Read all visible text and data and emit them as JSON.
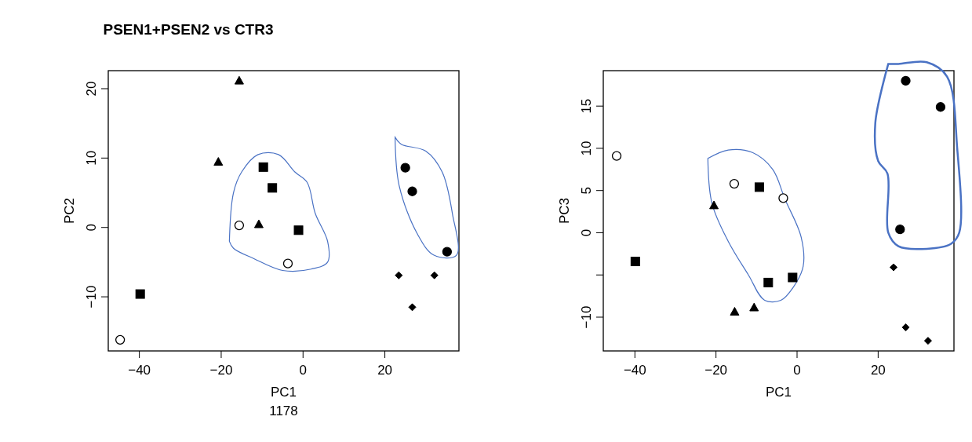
{
  "chart_data": [
    {
      "type": "scatter",
      "title": "PSEN1+PSEN2 vs CTR3",
      "xlabel": "PC1",
      "subtitle": "1178",
      "ylabel": "PC2",
      "xlim": [
        -47.6,
        38.1
      ],
      "ylim": [
        -17.8,
        22.6
      ],
      "xticks": [
        -40,
        -20,
        0,
        20
      ],
      "yticks": [
        -10,
        0,
        10,
        20
      ],
      "series": [
        {
          "marker": "triangle",
          "color": "#000000",
          "x": [
            -15.6,
            -20.7,
            -10.8
          ],
          "values": [
            21.1,
            9.4,
            0.4
          ]
        },
        {
          "marker": "square",
          "color": "#000000",
          "x": [
            -9.7,
            -7.5,
            -1.1,
            -39.8
          ],
          "values": [
            8.7,
            5.7,
            -0.4,
            -9.6
          ]
        },
        {
          "marker": "circle",
          "color": "#ffffff",
          "x": [
            -15.6,
            -3.7,
            -44.7
          ],
          "values": [
            0.3,
            -5.2,
            -16.2
          ]
        },
        {
          "marker": "circle",
          "color": "#000000",
          "x": [
            25.0,
            26.7,
            35.2
          ],
          "values": [
            8.6,
            5.2,
            -3.5
          ]
        },
        {
          "marker": "diamond",
          "color": "#000000",
          "x": [
            23.4,
            32.1,
            26.7
          ],
          "values": [
            -6.9,
            -6.9,
            -11.5
          ]
        }
      ]
    },
    {
      "type": "scatter",
      "xlabel": "PC1",
      "ylabel": "PC3",
      "xlim": [
        -47.8,
        38.7
      ],
      "ylim": [
        -14.0,
        19.2
      ],
      "xticks": [
        -40,
        -20,
        0,
        20
      ],
      "yticks": [
        -10,
        {
          "value": -5,
          "label": null
        },
        0,
        5,
        10,
        15
      ],
      "series": [
        {
          "marker": "triangle",
          "color": "#000000",
          "x": [
            -20.5,
            -15.4,
            -10.6
          ],
          "values": [
            3.2,
            -9.4,
            -8.9
          ]
        },
        {
          "marker": "square",
          "color": "#000000",
          "x": [
            -9.3,
            -39.9,
            -7.1,
            -1.1
          ],
          "values": [
            5.4,
            -3.4,
            -5.9,
            -5.3
          ]
        },
        {
          "marker": "circle",
          "color": "#ffffff",
          "x": [
            -44.5,
            -15.5,
            -3.4
          ],
          "values": [
            9.1,
            5.8,
            4.1
          ]
        },
        {
          "marker": "circle",
          "color": "#000000",
          "x": [
            26.8,
            35.4,
            25.4
          ],
          "values": [
            18.0,
            14.9,
            0.4
          ]
        },
        {
          "marker": "diamond",
          "color": "#000000",
          "x": [
            23.8,
            26.8,
            32.3
          ],
          "values": [
            -4.1,
            -11.2,
            -12.8
          ]
        }
      ]
    }
  ]
}
